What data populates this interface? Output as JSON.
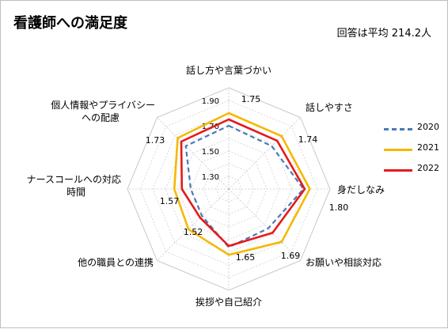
{
  "title": "看護師への満足度",
  "subtitle": "回答は平均 214.2人",
  "chart_data": {
    "type": "radar",
    "title": "看護師への満足度",
    "subtitle": "回答は平均 214.2人",
    "categories": [
      "話し方や言葉づかい",
      "話しやすさ",
      "身だしなみ",
      "お願いや相談対応",
      "挨拶や自己紹介",
      "他の職員との連携",
      "ナースコールへの対応時間",
      "個人情報やプライバシーへの配慮"
    ],
    "category_lines": [
      [
        "話し方や言葉づかい"
      ],
      [
        "話しやすさ"
      ],
      [
        "身だしなみ"
      ],
      [
        "お願いや相談対応"
      ],
      [
        "挨拶や自己紹介"
      ],
      [
        "他の職員との連携"
      ],
      [
        "ナースコールへの対応",
        "時間"
      ],
      [
        "個人情報やプライバシー",
        "への配慮"
      ]
    ],
    "scale_ticks": [
      "1.30",
      "1.50",
      "1.70",
      "1.90"
    ],
    "rmin": 1.2,
    "rmax": 2.0,
    "series": [
      {
        "name": "2020",
        "color": "#4a7ab5",
        "dashed": true,
        "width": 2.2,
        "values": [
          1.7,
          1.68,
          1.79,
          1.64,
          1.66,
          1.5,
          1.5,
          1.68
        ]
      },
      {
        "name": "2021",
        "color": "#f5b800",
        "dashed": false,
        "width": 2.6,
        "values": [
          1.8,
          1.79,
          1.84,
          1.79,
          1.72,
          1.65,
          1.63,
          1.77
        ]
      },
      {
        "name": "2022",
        "color": "#e51a1a",
        "dashed": false,
        "width": 2.6,
        "values": [
          1.75,
          1.74,
          1.8,
          1.69,
          1.65,
          1.52,
          1.57,
          1.73
        ]
      }
    ],
    "data_labels": [
      "1.75",
      "1.74",
      "1.80",
      "1.69",
      "1.65",
      "1.52",
      "1.57",
      "1.73"
    ],
    "legend": "right",
    "grid": true
  }
}
